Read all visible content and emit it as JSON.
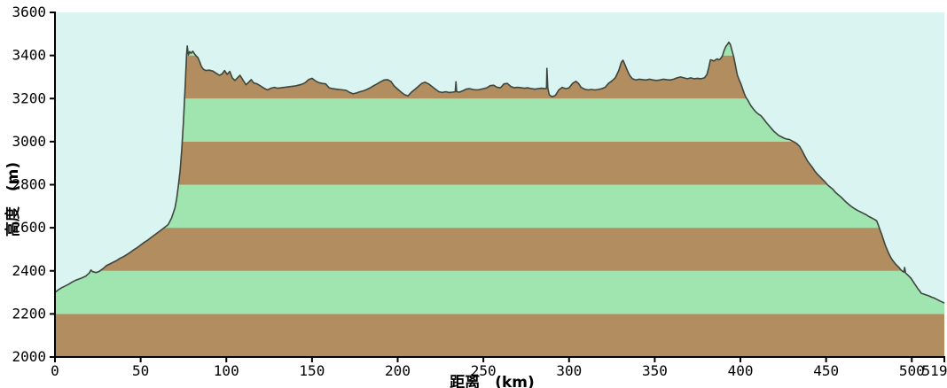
{
  "chart_data": {
    "type": "area",
    "title": "",
    "xlabel": "距离　(km)",
    "ylabel": "高度　(m)",
    "xlim": [
      0,
      519
    ],
    "ylim": [
      2000,
      3600
    ],
    "x_ticks": [
      0,
      50,
      100,
      150,
      200,
      250,
      300,
      350,
      400,
      450,
      500,
      519
    ],
    "y_ticks": [
      2000,
      2200,
      2400,
      2600,
      2800,
      3000,
      3200,
      3400,
      3600
    ],
    "grid": false,
    "legend_position": "none",
    "colors": {
      "sky": "#daf4f2",
      "band_brown": "#b18d5f",
      "band_green": "#a0e4af",
      "outline": "#3e463e",
      "axis": "#000000"
    },
    "bands": [
      {
        "from": 2000,
        "to": 2200,
        "color": "#b18d5f"
      },
      {
        "from": 2200,
        "to": 2400,
        "color": "#a0e4af"
      },
      {
        "from": 2400,
        "to": 2600,
        "color": "#b18d5f"
      },
      {
        "from": 2600,
        "to": 2800,
        "color": "#a0e4af"
      },
      {
        "from": 2800,
        "to": 3000,
        "color": "#b18d5f"
      },
      {
        "from": 3000,
        "to": 3200,
        "color": "#a0e4af"
      },
      {
        "from": 3200,
        "to": 3400,
        "color": "#b18d5f"
      },
      {
        "from": 3400,
        "to": 3600,
        "color": "#a0e4af"
      }
    ],
    "profile": [
      [
        0,
        2300
      ],
      [
        2,
        2312
      ],
      [
        4,
        2322
      ],
      [
        6,
        2330
      ],
      [
        8,
        2338
      ],
      [
        10,
        2348
      ],
      [
        12,
        2356
      ],
      [
        14,
        2362
      ],
      [
        16,
        2368
      ],
      [
        18,
        2376
      ],
      [
        20,
        2390
      ],
      [
        21,
        2404
      ],
      [
        22,
        2396
      ],
      [
        24,
        2392
      ],
      [
        26,
        2398
      ],
      [
        28,
        2410
      ],
      [
        30,
        2424
      ],
      [
        32,
        2432
      ],
      [
        34,
        2440
      ],
      [
        36,
        2448
      ],
      [
        38,
        2458
      ],
      [
        40,
        2466
      ],
      [
        42,
        2476
      ],
      [
        44,
        2486
      ],
      [
        46,
        2498
      ],
      [
        48,
        2508
      ],
      [
        50,
        2520
      ],
      [
        52,
        2532
      ],
      [
        54,
        2542
      ],
      [
        56,
        2554
      ],
      [
        58,
        2566
      ],
      [
        60,
        2578
      ],
      [
        62,
        2590
      ],
      [
        64,
        2602
      ],
      [
        66,
        2614
      ],
      [
        68,
        2644
      ],
      [
        70,
        2692
      ],
      [
        71,
        2734
      ],
      [
        72,
        2794
      ],
      [
        73,
        2864
      ],
      [
        74,
        2964
      ],
      [
        75,
        3094
      ],
      [
        76,
        3264
      ],
      [
        76.8,
        3404
      ],
      [
        77.2,
        3444
      ],
      [
        77.8,
        3402
      ],
      [
        78.6,
        3418
      ],
      [
        79.4,
        3410
      ],
      [
        80.4,
        3420
      ],
      [
        81.4,
        3408
      ],
      [
        82.4,
        3398
      ],
      [
        83.4,
        3390
      ],
      [
        84.4,
        3372
      ],
      [
        85.4,
        3350
      ],
      [
        86.6,
        3336
      ],
      [
        88,
        3330
      ],
      [
        90,
        3332
      ],
      [
        92,
        3328
      ],
      [
        94,
        3318
      ],
      [
        96,
        3308
      ],
      [
        97.5,
        3314
      ],
      [
        99,
        3330
      ],
      [
        100.5,
        3312
      ],
      [
        102,
        3326
      ],
      [
        103.5,
        3296
      ],
      [
        105,
        3284
      ],
      [
        106.5,
        3296
      ],
      [
        108,
        3308
      ],
      [
        110,
        3282
      ],
      [
        111.5,
        3264
      ],
      [
        113,
        3276
      ],
      [
        114.5,
        3288
      ],
      [
        116,
        3272
      ],
      [
        118,
        3268
      ],
      [
        120,
        3258
      ],
      [
        122,
        3248
      ],
      [
        124,
        3240
      ],
      [
        126,
        3248
      ],
      [
        128,
        3252
      ],
      [
        130,
        3248
      ],
      [
        132,
        3250
      ],
      [
        134,
        3252
      ],
      [
        136,
        3254
      ],
      [
        138,
        3256
      ],
      [
        140,
        3258
      ],
      [
        142,
        3262
      ],
      [
        144,
        3266
      ],
      [
        146,
        3274
      ],
      [
        148,
        3288
      ],
      [
        150,
        3294
      ],
      [
        152,
        3282
      ],
      [
        154,
        3274
      ],
      [
        156,
        3270
      ],
      [
        158,
        3268
      ],
      [
        160,
        3250
      ],
      [
        162,
        3246
      ],
      [
        164,
        3244
      ],
      [
        166,
        3242
      ],
      [
        168,
        3240
      ],
      [
        170,
        3238
      ],
      [
        172,
        3228
      ],
      [
        174,
        3222
      ],
      [
        176,
        3226
      ],
      [
        178,
        3232
      ],
      [
        180,
        3236
      ],
      [
        182,
        3242
      ],
      [
        184,
        3250
      ],
      [
        186,
        3260
      ],
      [
        188,
        3268
      ],
      [
        190,
        3278
      ],
      [
        192,
        3286
      ],
      [
        194,
        3288
      ],
      [
        196,
        3280
      ],
      [
        198,
        3258
      ],
      [
        200,
        3244
      ],
      [
        202,
        3230
      ],
      [
        204,
        3218
      ],
      [
        206,
        3212
      ],
      [
        208,
        3230
      ],
      [
        210,
        3242
      ],
      [
        212,
        3256
      ],
      [
        214,
        3270
      ],
      [
        216,
        3276
      ],
      [
        218,
        3268
      ],
      [
        220,
        3256
      ],
      [
        222,
        3244
      ],
      [
        224,
        3232
      ],
      [
        226,
        3228
      ],
      [
        228,
        3232
      ],
      [
        230,
        3228
      ],
      [
        232,
        3230
      ],
      [
        233.6,
        3232
      ],
      [
        234,
        3278
      ],
      [
        234.4,
        3232
      ],
      [
        236,
        3230
      ],
      [
        238,
        3236
      ],
      [
        240,
        3244
      ],
      [
        242,
        3246
      ],
      [
        244,
        3242
      ],
      [
        246,
        3240
      ],
      [
        248,
        3242
      ],
      [
        250,
        3246
      ],
      [
        252,
        3250
      ],
      [
        254,
        3260
      ],
      [
        256,
        3262
      ],
      [
        258,
        3252
      ],
      [
        260,
        3250
      ],
      [
        262,
        3268
      ],
      [
        264,
        3270
      ],
      [
        266,
        3256
      ],
      [
        268,
        3250
      ],
      [
        270,
        3252
      ],
      [
        272,
        3250
      ],
      [
        274,
        3248
      ],
      [
        276,
        3250
      ],
      [
        278,
        3246
      ],
      [
        280,
        3244
      ],
      [
        282,
        3246
      ],
      [
        284,
        3248
      ],
      [
        286,
        3246
      ],
      [
        286.8,
        3248
      ],
      [
        287.1,
        3340
      ],
      [
        287.6,
        3248
      ],
      [
        288.4,
        3218
      ],
      [
        290,
        3208
      ],
      [
        292,
        3214
      ],
      [
        294,
        3240
      ],
      [
        296,
        3252
      ],
      [
        298,
        3246
      ],
      [
        300,
        3250
      ],
      [
        302,
        3270
      ],
      [
        304,
        3280
      ],
      [
        305.5,
        3270
      ],
      [
        307,
        3252
      ],
      [
        309,
        3244
      ],
      [
        311,
        3240
      ],
      [
        313,
        3242
      ],
      [
        315,
        3240
      ],
      [
        317,
        3242
      ],
      [
        319,
        3246
      ],
      [
        321,
        3252
      ],
      [
        323,
        3270
      ],
      [
        325,
        3282
      ],
      [
        327,
        3296
      ],
      [
        329,
        3330
      ],
      [
        330.5,
        3368
      ],
      [
        331.5,
        3378
      ],
      [
        332.5,
        3360
      ],
      [
        333.5,
        3340
      ],
      [
        334.5,
        3322
      ],
      [
        335.5,
        3306
      ],
      [
        337,
        3292
      ],
      [
        339,
        3286
      ],
      [
        341,
        3290
      ],
      [
        343,
        3288
      ],
      [
        345,
        3286
      ],
      [
        347,
        3290
      ],
      [
        349,
        3286
      ],
      [
        351,
        3284
      ],
      [
        353,
        3286
      ],
      [
        355,
        3290
      ],
      [
        357,
        3288
      ],
      [
        359,
        3286
      ],
      [
        361,
        3290
      ],
      [
        363,
        3296
      ],
      [
        365,
        3300
      ],
      [
        367,
        3296
      ],
      [
        369,
        3292
      ],
      [
        371,
        3296
      ],
      [
        373,
        3292
      ],
      [
        375,
        3294
      ],
      [
        377,
        3292
      ],
      [
        379,
        3296
      ],
      [
        380.5,
        3312
      ],
      [
        381.5,
        3344
      ],
      [
        382.5,
        3380
      ],
      [
        383.5,
        3378
      ],
      [
        384.5,
        3374
      ],
      [
        385.5,
        3380
      ],
      [
        386.5,
        3384
      ],
      [
        387.5,
        3380
      ],
      [
        388.5,
        3386
      ],
      [
        389.5,
        3398
      ],
      [
        390.5,
        3424
      ],
      [
        391.5,
        3442
      ],
      [
        392.5,
        3452
      ],
      [
        393.2,
        3462
      ],
      [
        394.2,
        3450
      ],
      [
        395.2,
        3420
      ],
      [
        396.2,
        3390
      ],
      [
        397.2,
        3350
      ],
      [
        398.2,
        3310
      ],
      [
        399.2,
        3288
      ],
      [
        400.2,
        3270
      ],
      [
        401.2,
        3248
      ],
      [
        402.2,
        3224
      ],
      [
        403.2,
        3206
      ],
      [
        404.5,
        3190
      ],
      [
        406,
        3168
      ],
      [
        407.5,
        3152
      ],
      [
        409,
        3138
      ],
      [
        410.5,
        3128
      ],
      [
        412,
        3120
      ],
      [
        413.5,
        3106
      ],
      [
        415,
        3090
      ],
      [
        416.5,
        3076
      ],
      [
        418,
        3062
      ],
      [
        419.5,
        3048
      ],
      [
        421,
        3038
      ],
      [
        422.5,
        3028
      ],
      [
        424,
        3022
      ],
      [
        425.5,
        3016
      ],
      [
        427,
        3012
      ],
      [
        428.5,
        3010
      ],
      [
        430,
        3004
      ],
      [
        431.5,
        2998
      ],
      [
        433,
        2990
      ],
      [
        434.5,
        2978
      ],
      [
        436,
        2958
      ],
      [
        437.5,
        2934
      ],
      [
        439,
        2912
      ],
      [
        440.5,
        2896
      ],
      [
        442,
        2880
      ],
      [
        443.5,
        2862
      ],
      [
        445,
        2848
      ],
      [
        446.5,
        2836
      ],
      [
        448,
        2824
      ],
      [
        449.5,
        2812
      ],
      [
        451,
        2798
      ],
      [
        452.5,
        2788
      ],
      [
        454,
        2778
      ],
      [
        455.5,
        2764
      ],
      [
        457,
        2754
      ],
      [
        458.5,
        2744
      ],
      [
        460,
        2732
      ],
      [
        461.5,
        2720
      ],
      [
        463,
        2710
      ],
      [
        464.5,
        2700
      ],
      [
        466,
        2692
      ],
      [
        467.5,
        2684
      ],
      [
        469,
        2678
      ],
      [
        470.5,
        2672
      ],
      [
        472,
        2666
      ],
      [
        473.5,
        2660
      ],
      [
        475,
        2652
      ],
      [
        476.5,
        2646
      ],
      [
        478,
        2640
      ],
      [
        479.5,
        2632
      ],
      [
        480.5,
        2612
      ],
      [
        481.5,
        2590
      ],
      [
        482.5,
        2568
      ],
      [
        483.5,
        2544
      ],
      [
        484.5,
        2520
      ],
      [
        485.5,
        2500
      ],
      [
        486.5,
        2482
      ],
      [
        487.5,
        2466
      ],
      [
        488.5,
        2452
      ],
      [
        489.5,
        2442
      ],
      [
        490.5,
        2432
      ],
      [
        491.5,
        2424
      ],
      [
        492.5,
        2416
      ],
      [
        493.5,
        2406
      ],
      [
        494.5,
        2398
      ],
      [
        495.4,
        2394
      ],
      [
        495.8,
        2416
      ],
      [
        496.4,
        2390
      ],
      [
        497.5,
        2382
      ],
      [
        498.5,
        2374
      ],
      [
        499.5,
        2366
      ],
      [
        500.5,
        2354
      ],
      [
        501.5,
        2342
      ],
      [
        502.5,
        2330
      ],
      [
        503.5,
        2318
      ],
      [
        504.5,
        2308
      ],
      [
        505.5,
        2296
      ],
      [
        507,
        2292
      ],
      [
        508.5,
        2288
      ],
      [
        510,
        2284
      ],
      [
        511.5,
        2278
      ],
      [
        513,
        2274
      ],
      [
        514.5,
        2268
      ],
      [
        516,
        2262
      ],
      [
        517,
        2258
      ],
      [
        518,
        2254
      ],
      [
        519,
        2250
      ]
    ]
  }
}
